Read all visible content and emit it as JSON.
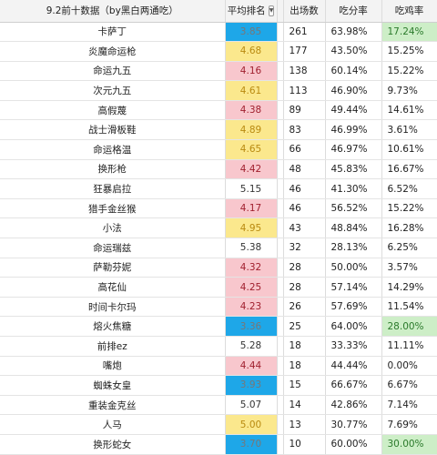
{
  "headers": {
    "name": "9.2前十数据（by黑白两通吃）",
    "rank": "平均排名",
    "count": "出场数",
    "winrate": "吃分率",
    "eatrate": "吃鸡率"
  },
  "colors": {
    "blue": "#1ea7e8",
    "yellow": "#fbe88d",
    "pink": "#f8c7cd",
    "green": "#cdeec7"
  },
  "rows": [
    {
      "name": "卡萨丁",
      "rank": "3.85",
      "count": "261",
      "win": "63.98%",
      "eat": "17.24%",
      "rank_color": "blue",
      "eat_color": "green"
    },
    {
      "name": "炎魔命运枪",
      "rank": "4.68",
      "count": "177",
      "win": "43.50%",
      "eat": "15.25%",
      "rank_color": "yellow",
      "eat_color": ""
    },
    {
      "name": "命运九五",
      "rank": "4.16",
      "count": "138",
      "win": "60.14%",
      "eat": "15.22%",
      "rank_color": "pink",
      "eat_color": ""
    },
    {
      "name": "次元九五",
      "rank": "4.61",
      "count": "113",
      "win": "46.90%",
      "eat": "9.73%",
      "rank_color": "yellow",
      "eat_color": ""
    },
    {
      "name": "高假蔑",
      "rank": "4.38",
      "count": "89",
      "win": "49.44%",
      "eat": "14.61%",
      "rank_color": "pink",
      "eat_color": ""
    },
    {
      "name": "战士滑板鞋",
      "rank": "4.89",
      "count": "83",
      "win": "46.99%",
      "eat": "3.61%",
      "rank_color": "yellow",
      "eat_color": ""
    },
    {
      "name": "命运格温",
      "rank": "4.65",
      "count": "66",
      "win": "46.97%",
      "eat": "10.61%",
      "rank_color": "yellow",
      "eat_color": ""
    },
    {
      "name": "换形枪",
      "rank": "4.42",
      "count": "48",
      "win": "45.83%",
      "eat": "16.67%",
      "rank_color": "pink",
      "eat_color": ""
    },
    {
      "name": "狂暴启拉",
      "rank": "5.15",
      "count": "46",
      "win": "41.30%",
      "eat": "6.52%",
      "rank_color": "plain",
      "eat_color": ""
    },
    {
      "name": "猎手金丝猴",
      "rank": "4.17",
      "count": "46",
      "win": "56.52%",
      "eat": "15.22%",
      "rank_color": "pink",
      "eat_color": ""
    },
    {
      "name": "小法",
      "rank": "4.95",
      "count": "43",
      "win": "48.84%",
      "eat": "16.28%",
      "rank_color": "yellow",
      "eat_color": ""
    },
    {
      "name": "命运瑞兹",
      "rank": "5.38",
      "count": "32",
      "win": "28.13%",
      "eat": "6.25%",
      "rank_color": "plain",
      "eat_color": ""
    },
    {
      "name": "萨勒芬妮",
      "rank": "4.32",
      "count": "28",
      "win": "50.00%",
      "eat": "3.57%",
      "rank_color": "pink",
      "eat_color": ""
    },
    {
      "name": "高花仙",
      "rank": "4.25",
      "count": "28",
      "win": "57.14%",
      "eat": "14.29%",
      "rank_color": "pink",
      "eat_color": ""
    },
    {
      "name": "时间卡尔玛",
      "rank": "4.23",
      "count": "26",
      "win": "57.69%",
      "eat": "11.54%",
      "rank_color": "pink",
      "eat_color": ""
    },
    {
      "name": "熔火焦糖",
      "rank": "3.36",
      "count": "25",
      "win": "64.00%",
      "eat": "28.00%",
      "rank_color": "blue",
      "eat_color": "green"
    },
    {
      "name": "前排ez",
      "rank": "5.28",
      "count": "18",
      "win": "33.33%",
      "eat": "11.11%",
      "rank_color": "plain",
      "eat_color": ""
    },
    {
      "name": "嘴炮",
      "rank": "4.44",
      "count": "18",
      "win": "44.44%",
      "eat": "0.00%",
      "rank_color": "pink",
      "eat_color": ""
    },
    {
      "name": "蜘蛛女皇",
      "rank": "3.93",
      "count": "15",
      "win": "66.67%",
      "eat": "6.67%",
      "rank_color": "blue",
      "eat_color": ""
    },
    {
      "name": "重装金克丝",
      "rank": "5.07",
      "count": "14",
      "win": "42.86%",
      "eat": "7.14%",
      "rank_color": "plain",
      "eat_color": ""
    },
    {
      "name": "人马",
      "rank": "5.00",
      "count": "13",
      "win": "30.77%",
      "eat": "7.69%",
      "rank_color": "yellow",
      "eat_color": ""
    },
    {
      "name": "换形蛇女",
      "rank": "3.70",
      "count": "10",
      "win": "60.00%",
      "eat": "30.00%",
      "rank_color": "blue",
      "eat_color": "green"
    }
  ]
}
